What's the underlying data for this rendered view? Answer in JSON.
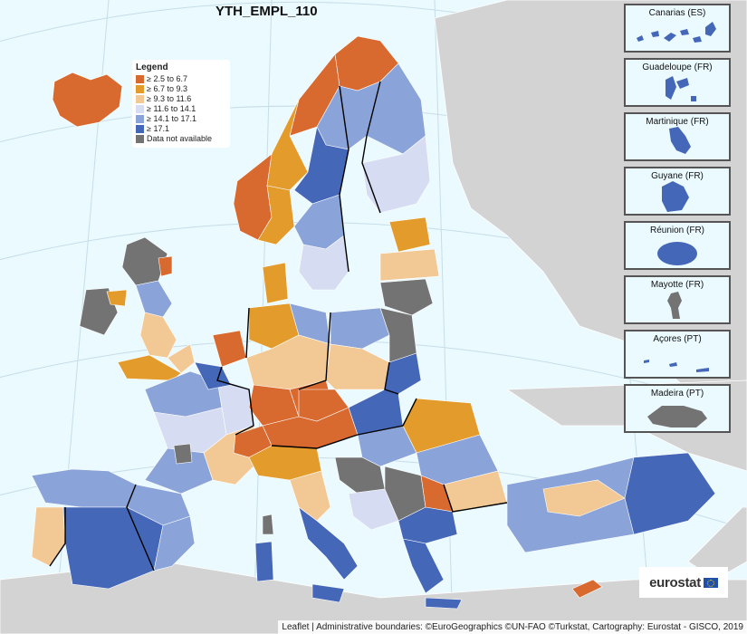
{
  "title": "YTH_EMPL_110",
  "legend": {
    "title": "Legend",
    "classes": [
      {
        "label": "≥ 2.5 to 6.7",
        "color": "#d8692f"
      },
      {
        "label": "≥ 6.7 to 9.3",
        "color": "#e39b2c"
      },
      {
        "label": "≥ 9.3 to 11.6",
        "color": "#f2c994"
      },
      {
        "label": "≥ 11.6 to 14.1",
        "color": "#d6dcf1"
      },
      {
        "label": "≥ 14.1 to 17.1",
        "color": "#8aa4d9"
      },
      {
        "label": "≥ 17.1",
        "color": "#4567b7"
      },
      {
        "label": "Data not available",
        "color": "#737373"
      }
    ]
  },
  "colors": {
    "sea": "#eafaff",
    "non_eu_land": "#d3d3d3",
    "border": "#000000"
  },
  "insets": [
    {
      "label": "Canarias (ES)",
      "class": 5
    },
    {
      "label": "Guadeloupe (FR)",
      "class": 5
    },
    {
      "label": "Martinique (FR)",
      "class": 5
    },
    {
      "label": "Guyane (FR)",
      "class": 5
    },
    {
      "label": "Réunion (FR)",
      "class": 5
    },
    {
      "label": "Mayotte (FR)",
      "class": 6
    },
    {
      "label": "Açores (PT)",
      "class": 5
    },
    {
      "label": "Madeira (PT)",
      "class": 6
    }
  ],
  "logo": {
    "text": "eurostat"
  },
  "attribution": {
    "leaflet": "Leaflet",
    "text": "Administrative boundaries: ©EuroGeographics ©UN-FAO ©Turkstat, Cartography: Eurostat - GISCO, 2019"
  }
}
